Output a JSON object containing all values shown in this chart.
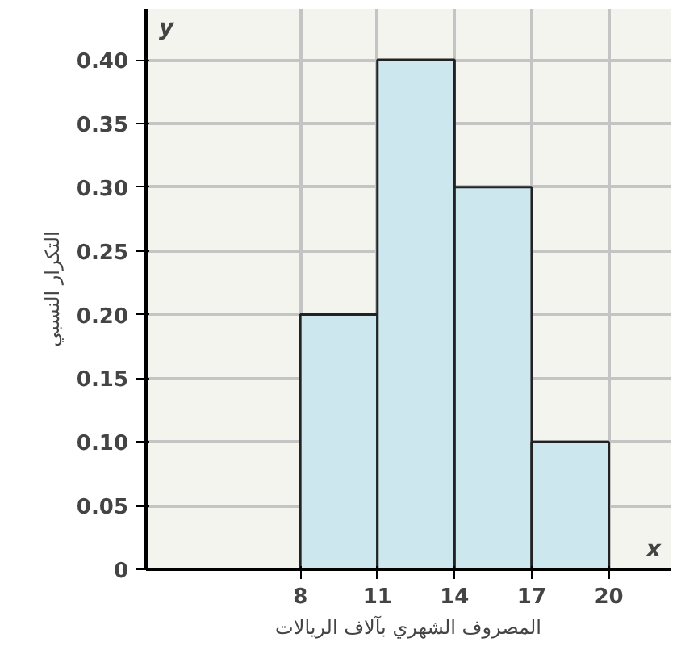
{
  "chart_data": {
    "type": "histogram",
    "xlabel": "المصروف الشهري بآلاف الريالات",
    "ylabel": "التكرار النسبي",
    "bins": [
      8,
      11,
      14,
      17,
      20
    ],
    "values": [
      0.2,
      0.4,
      0.3,
      0.1
    ],
    "color": "#cce8ee",
    "xlim": [
      2,
      22.4
    ],
    "ylim": [
      0,
      0.44
    ],
    "xticks": [
      8,
      11,
      14,
      17,
      20
    ],
    "yticks": [
      0,
      0.05,
      {
        "value": 0.1,
        "label": "0.10"
      },
      0.15,
      {
        "value": 0.2,
        "label": "0.20"
      },
      0.25,
      {
        "value": 0.3,
        "label": "0.30"
      },
      0.35,
      {
        "value": 0.4,
        "label": "0.40"
      }
    ],
    "grid": true,
    "annotations": [
      "x",
      "y"
    ]
  }
}
